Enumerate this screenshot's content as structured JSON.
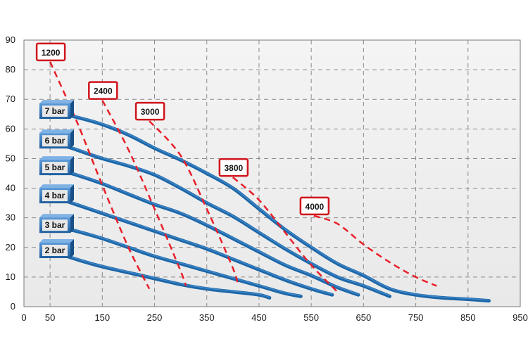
{
  "chart_data": {
    "type": "line",
    "title": "",
    "xlabel": "",
    "ylabel": "",
    "xlim": [
      0,
      950
    ],
    "ylim": [
      0,
      90
    ],
    "x_ticks": [
      "0",
      "50",
      "150",
      "250",
      "350",
      "450",
      "550",
      "650",
      "750",
      "850",
      "950"
    ],
    "y_ticks": [
      "0",
      "10",
      "20",
      "30",
      "40",
      "50",
      "60",
      "70",
      "80",
      "90"
    ],
    "grid": true,
    "colors": {
      "plot_background": "#f0f0f0",
      "grid": "#8a8a8a",
      "curve": "#1c66a8",
      "curve_highlight": "#4f95d6",
      "label_box": "#2a6fb5",
      "speed_line": "#e8202a",
      "speed_box_border": "#d0141c"
    },
    "series": [
      {
        "name": "7 bar",
        "x": [
          50,
          100,
          150,
          200,
          250,
          300,
          350,
          400,
          450,
          500,
          550,
          600,
          650,
          700,
          750,
          800,
          850,
          890
        ],
        "y": [
          66,
          64,
          61.5,
          58,
          53.5,
          49.5,
          45,
          40,
          33,
          26,
          20,
          14.5,
          10.5,
          6,
          4,
          3,
          2.5,
          2
        ]
      },
      {
        "name": "6 bar",
        "x": [
          50,
          100,
          150,
          200,
          250,
          300,
          350,
          400,
          450,
          500,
          550,
          600,
          650,
          700
        ],
        "y": [
          56,
          53,
          50,
          47.5,
          44.5,
          40,
          35,
          30.5,
          25,
          19.5,
          14.5,
          10,
          7,
          3.5
        ]
      },
      {
        "name": "5 bar",
        "x": [
          50,
          100,
          150,
          200,
          250,
          300,
          350,
          400,
          450,
          500,
          550,
          600,
          640
        ],
        "y": [
          47,
          44.5,
          41.5,
          38,
          34.5,
          31.5,
          27.5,
          23,
          18.5,
          14,
          10.5,
          6.5,
          4
        ]
      },
      {
        "name": "4 bar",
        "x": [
          50,
          100,
          150,
          200,
          250,
          300,
          350,
          400,
          450,
          500,
          550,
          590
        ],
        "y": [
          37.5,
          34.5,
          31.5,
          28.5,
          25.5,
          22.5,
          19.5,
          16,
          12.5,
          9,
          6,
          4
        ]
      },
      {
        "name": "3 bar",
        "x": [
          50,
          100,
          150,
          200,
          250,
          300,
          350,
          400,
          450,
          500,
          530
        ],
        "y": [
          27.5,
          25.5,
          23,
          20,
          17,
          14.5,
          12,
          9.5,
          7,
          4.5,
          3.5
        ]
      },
      {
        "name": "2 bar",
        "x": [
          50,
          100,
          150,
          200,
          250,
          300,
          350,
          400,
          450,
          470
        ],
        "y": [
          19,
          16,
          13.5,
          11.5,
          9.5,
          7.5,
          6,
          5,
          4,
          3
        ]
      }
    ],
    "speed_lines": [
      {
        "label": "1200",
        "x": [
          50,
          100,
          150,
          200,
          240
        ],
        "y": [
          86,
          63,
          41,
          20,
          6
        ]
      },
      {
        "label": "2400",
        "x": [
          150,
          200,
          250,
          300,
          310
        ],
        "y": [
          73,
          53,
          33,
          12,
          7
        ]
      },
      {
        "label": "3000",
        "x": [
          240,
          300,
          350,
          400,
          410
        ],
        "y": [
          66,
          51,
          33,
          13,
          7
        ]
      },
      {
        "label": "3800",
        "x": [
          400,
          450,
          500,
          550,
          600
        ],
        "y": [
          47,
          36,
          25,
          14,
          5
        ]
      },
      {
        "label": "4000",
        "x": [
          555,
          600,
          650,
          700,
          750,
          790
        ],
        "y": [
          34,
          28,
          21,
          15,
          10,
          7
        ]
      }
    ]
  }
}
